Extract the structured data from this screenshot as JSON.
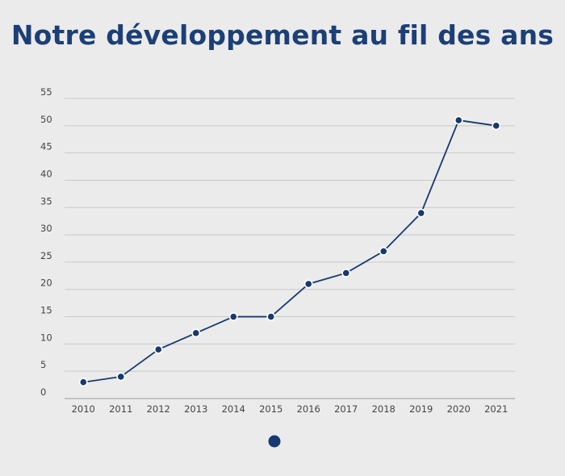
{
  "title": "Notre développement au fil des ans",
  "colors": {
    "title": "#1c3f78",
    "series": "#163a70",
    "background": "#ebebeb"
  },
  "chart_data": {
    "type": "line",
    "title": "Notre développement au fil des ans",
    "xlabel": "",
    "ylabel": "",
    "x": [
      "2010",
      "2011",
      "2012",
      "2013",
      "2014",
      "2015",
      "2016",
      "2017",
      "2018",
      "2019",
      "2020",
      "2021"
    ],
    "series": [
      {
        "values": [
          3,
          4,
          9,
          12,
          15,
          15,
          21,
          23,
          27,
          34,
          51,
          50
        ]
      }
    ],
    "ylim": [
      0,
      55
    ],
    "yticks": [
      0,
      5,
      10,
      15,
      20,
      25,
      30,
      35,
      40,
      45,
      50,
      55
    ],
    "grid": true,
    "legend": "bottom-center"
  }
}
